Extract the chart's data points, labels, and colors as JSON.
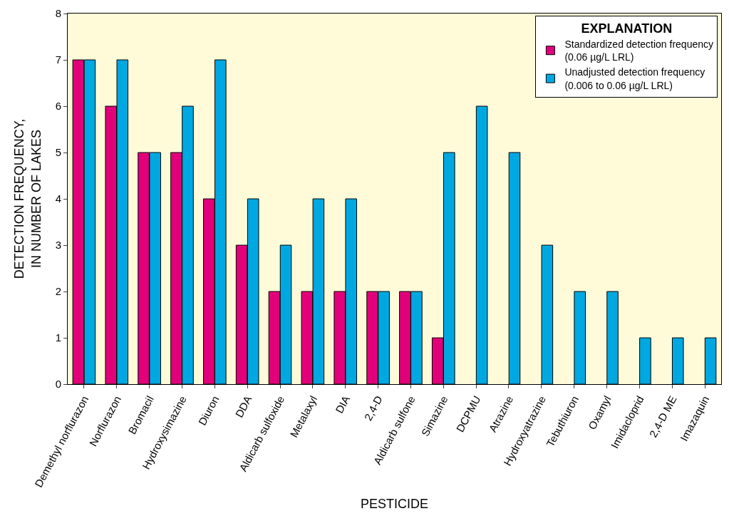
{
  "chart_data": {
    "type": "bar",
    "xlabel": "PESTICIDE",
    "ylabel": "DETECTION FREQUENCY,\nIN NUMBER OF LAKES",
    "legend_title": "EXPLANATION",
    "categories": [
      "Demethyl norflurazon",
      "Norflurazon",
      "Bromacil",
      "Hydroxysimazine",
      "Diuron",
      "DDA",
      "Aldicarb sulfoxide",
      "Metalaxyl",
      "DIA",
      "2,4-D",
      "Aldicarb sulfone",
      "Simazine",
      "DCPMU",
      "Atrazine",
      "Hydroxyatrazine",
      "Tebuthiuron",
      "Oxamyl",
      "Imidacloprid",
      "2,4-D ME",
      "Imazaquin"
    ],
    "series": [
      {
        "name": "Standardized detection frequency\n(0.06 µg/L LRL)",
        "color": "#e2007a",
        "values": [
          7,
          6,
          5,
          5,
          4,
          3,
          2,
          2,
          2,
          2,
          2,
          1,
          null,
          null,
          null,
          null,
          null,
          null,
          null,
          null
        ]
      },
      {
        "name": "Unadjusted detection frequency\n(0.006 to 0.06 µg/L LRL)",
        "color": "#00a8e1",
        "values": [
          7,
          7,
          5,
          6,
          7,
          4,
          3,
          4,
          4,
          2,
          2,
          5,
          6,
          5,
          3,
          2,
          2,
          1,
          1,
          1
        ]
      }
    ],
    "ylim": [
      0,
      8
    ],
    "yticks": [
      0,
      1,
      2,
      3,
      4,
      5,
      6,
      7,
      8
    ],
    "grid": false,
    "legend": "top right"
  }
}
